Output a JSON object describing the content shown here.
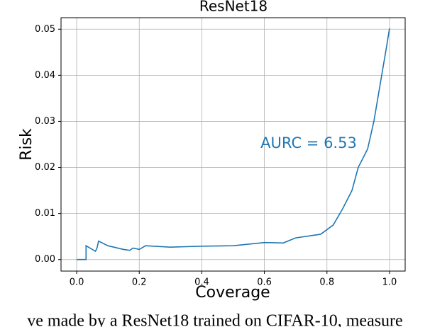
{
  "chart_data": {
    "type": "line",
    "title": "ResNet18",
    "xlabel": "Coverage",
    "ylabel": "Risk",
    "annotation": "AURC = 6.53",
    "caption": "ve made by a ResNet18 trained on CIFAR-10, measure",
    "x": [
      0,
      0.03,
      0.03,
      0.06,
      0.065,
      0.07,
      0.1,
      0.15,
      0.17,
      0.18,
      0.2,
      0.22,
      0.3,
      0.4,
      0.5,
      0.6,
      0.66,
      0.7,
      0.78,
      0.82,
      0.85,
      0.88,
      0.9,
      0.93,
      0.95,
      0.97,
      0.99,
      1.0
    ],
    "series": [
      {
        "name": "risk",
        "color": "#1f77b4",
        "values": [
          0,
          0,
          0.003,
          0.0018,
          0.0025,
          0.004,
          0.003,
          0.0022,
          0.002,
          0.0025,
          0.0022,
          0.003,
          0.0027,
          0.0029,
          0.003,
          0.0037,
          0.0036,
          0.0047,
          0.0055,
          0.0075,
          0.011,
          0.015,
          0.02,
          0.024,
          0.03,
          0.038,
          0.046,
          0.0502
        ]
      }
    ],
    "xlim": [
      -0.05,
      1.05
    ],
    "ylim": [
      -0.0025,
      0.0525
    ],
    "xticks": [
      {
        "value": 0,
        "label": "0.0"
      },
      {
        "value": 0.2,
        "label": "0.2"
      },
      {
        "value": 0.4,
        "label": "0.4"
      },
      {
        "value": 0.6,
        "label": "0.6"
      },
      {
        "value": 0.8,
        "label": "0.8"
      },
      {
        "value": 1,
        "label": "1.0"
      }
    ],
    "yticks": [
      {
        "value": 0,
        "label": "0.00"
      },
      {
        "value": 0.01,
        "label": "0.01"
      },
      {
        "value": 0.02,
        "label": "0.02"
      },
      {
        "value": 0.03,
        "label": "0.03"
      },
      {
        "value": 0.04,
        "label": "0.04"
      },
      {
        "value": 0.05,
        "label": "0.05"
      }
    ],
    "grid": true
  }
}
